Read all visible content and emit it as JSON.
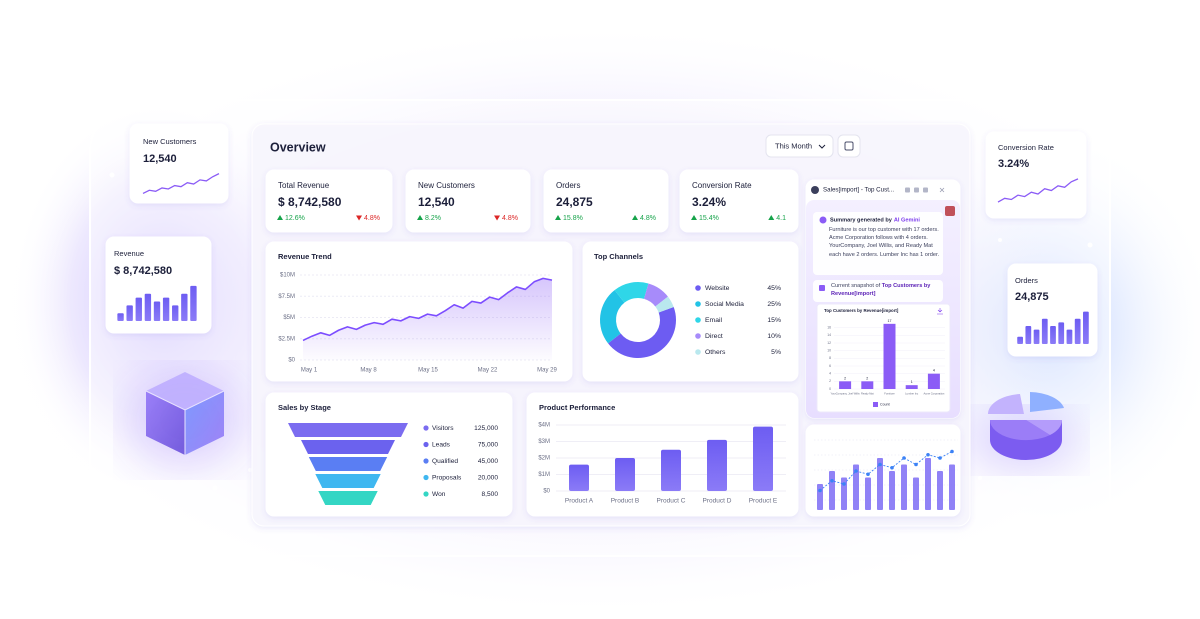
{
  "header": {
    "title": "Overview",
    "period": "This Month"
  },
  "kpis": [
    {
      "label": "Total Revenue",
      "value": "$ 8,742,580",
      "changes": [
        {
          "text": "12.6%",
          "dir": "up"
        },
        {
          "text": "4.8%",
          "dir": "down"
        }
      ]
    },
    {
      "label": "New Customers",
      "value": "12,540",
      "changes": [
        {
          "text": "8.2%",
          "dir": "up"
        },
        {
          "text": "4.8%",
          "dir": "down"
        }
      ]
    },
    {
      "label": "Orders",
      "value": "24,875",
      "changes": [
        {
          "text": "15.8%",
          "dir": "up"
        },
        {
          "text": "4.8%",
          "dir": "up"
        }
      ]
    },
    {
      "label": "Conversion Rate",
      "value": "3.24%",
      "changes": [
        {
          "text": "15.4%",
          "dir": "up"
        },
        {
          "text": "4.1",
          "dir": "up"
        }
      ]
    }
  ],
  "revenue_trend": {
    "title": "Revenue Trend",
    "x_labels": [
      "May 1",
      "May 8",
      "May 15",
      "May 22",
      "May 29"
    ],
    "ylim": [
      0,
      10
    ],
    "yticks": [
      {
        "value": 0,
        "label": "$0"
      },
      {
        "value": 2.5,
        "label": "$2.5M"
      },
      {
        "value": 5,
        "label": "$5M"
      },
      {
        "value": 7.5,
        "label": "$7.5M"
      },
      {
        "value": 10,
        "label": "$10M"
      }
    ],
    "values": [
      2.3,
      2.8,
      3.2,
      2.9,
      3.5,
      3.9,
      3.6,
      4.1,
      4.4,
      4.2,
      4.8,
      4.6,
      5.1,
      4.9,
      5.4,
      5.2,
      5.8,
      6.5,
      6.1,
      6.9,
      6.7,
      7.4,
      7.1,
      7.9,
      8.6,
      8.3,
      9.2,
      9.6,
      9.4
    ],
    "color": "#7c4dff"
  },
  "top_channels": {
    "title": "Top Channels",
    "items": [
      {
        "name": "Website",
        "value": 45,
        "label": "45%",
        "color": "#6d5cf2"
      },
      {
        "name": "Social Media",
        "value": 25,
        "label": "25%",
        "color": "#22c3e6"
      },
      {
        "name": "Email",
        "value": 15,
        "label": "15%",
        "color": "#2fd6e8"
      },
      {
        "name": "Direct",
        "value": 10,
        "label": "10%",
        "color": "#a78bfa"
      },
      {
        "name": "Others",
        "value": 5,
        "label": "5%",
        "color": "#b9e8ee"
      }
    ]
  },
  "sales_by_stage": {
    "title": "Sales by Stage",
    "stages": [
      {
        "name": "Visitors",
        "value": 125000,
        "label": "125,000",
        "color": "#7b6cf0"
      },
      {
        "name": "Leads",
        "value": 75000,
        "label": "75,000",
        "color": "#6b62ee"
      },
      {
        "name": "Qualified",
        "value": 45000,
        "label": "45,000",
        "color": "#5a7ef3"
      },
      {
        "name": "Proposals",
        "value": 20000,
        "label": "20,000",
        "color": "#3fb7f0"
      },
      {
        "name": "Won",
        "value": 8500,
        "label": "8,500",
        "color": "#34d6c4"
      }
    ]
  },
  "product_performance": {
    "title": "Product Performance",
    "categories": [
      "Product A",
      "Product B",
      "Product C",
      "Product D",
      "Product E"
    ],
    "values": [
      1.6,
      2.0,
      2.5,
      3.1,
      3.9
    ],
    "ylim": [
      0,
      4
    ],
    "yticks": [
      {
        "value": 0,
        "label": "$0"
      },
      {
        "value": 1,
        "label": "$1M"
      },
      {
        "value": 2,
        "label": "$2M"
      },
      {
        "value": 3,
        "label": "$3M"
      },
      {
        "value": 4,
        "label": "$4M"
      }
    ],
    "color": "#6a5af0"
  },
  "side_cards": {
    "new_customers": {
      "label": "New Customers",
      "value": "12,540",
      "ylim": [
        0,
        10
      ],
      "trend": [
        1,
        2.2,
        1.8,
        3.1,
        2.7,
        4,
        3.6,
        5.1,
        4.6,
        6.2,
        5.8,
        7.4,
        8.6
      ]
    },
    "revenue": {
      "label": "Revenue",
      "value": "$ 8,742,580",
      "ylim": [
        0,
        10
      ],
      "bars": [
        2,
        4,
        6,
        7,
        5,
        6,
        4,
        7,
        9
      ]
    },
    "conversion_rate": {
      "label": "Conversion Rate",
      "value": "3.24%",
      "ylim": [
        0,
        10
      ],
      "trend": [
        1,
        2.3,
        1.9,
        3.4,
        2.9,
        4.4,
        3.8,
        5.6,
        5,
        6.6,
        6.1,
        8,
        9
      ]
    },
    "orders": {
      "label": "Orders",
      "value": "24,875",
      "ylim": [
        0,
        10
      ],
      "bars": [
        2,
        5,
        4,
        7,
        5,
        6,
        4,
        7,
        9
      ]
    }
  },
  "assistant": {
    "title": "Sales[import] - Top Cust...",
    "summary_prefix": "Summary generated by",
    "summary_source": "AI Gemini",
    "message": "Furniture is our top customer with 17 orders. Acme Corporation follows with 4 orders. YourCompany, Joel Willis, and Ready Mat each have 2 orders. Lumber Inc has 1 order.",
    "snapshot_prefix": "Current snapshot of",
    "snapshot_subject": "Top Customers by Revenue[import]",
    "chart": {
      "title": "Top Customers by Revenue[import]",
      "categories": [
        "YourCompany, Joel Willis",
        "Ready Mat",
        "Furniture",
        "Lumber Inc",
        "Acme Corporation"
      ],
      "values": [
        2,
        2,
        17,
        1,
        4
      ],
      "ylim": [
        0,
        18
      ],
      "yticks": [
        0,
        2,
        4,
        6,
        8,
        10,
        12,
        14,
        16
      ],
      "legend": "Count",
      "color": "#8b5cf6"
    }
  },
  "mini_chart": {
    "ylim": [
      0,
      12
    ],
    "bars": [
      4,
      6,
      5,
      7,
      5,
      8,
      6,
      7,
      5,
      8,
      6,
      7
    ],
    "line": [
      3,
      4.5,
      4,
      6,
      5.5,
      7,
      6.5,
      8,
      7,
      8.5,
      8,
      9
    ],
    "bar_color": "#7c6cf5",
    "line_color": "#3b82f6"
  }
}
